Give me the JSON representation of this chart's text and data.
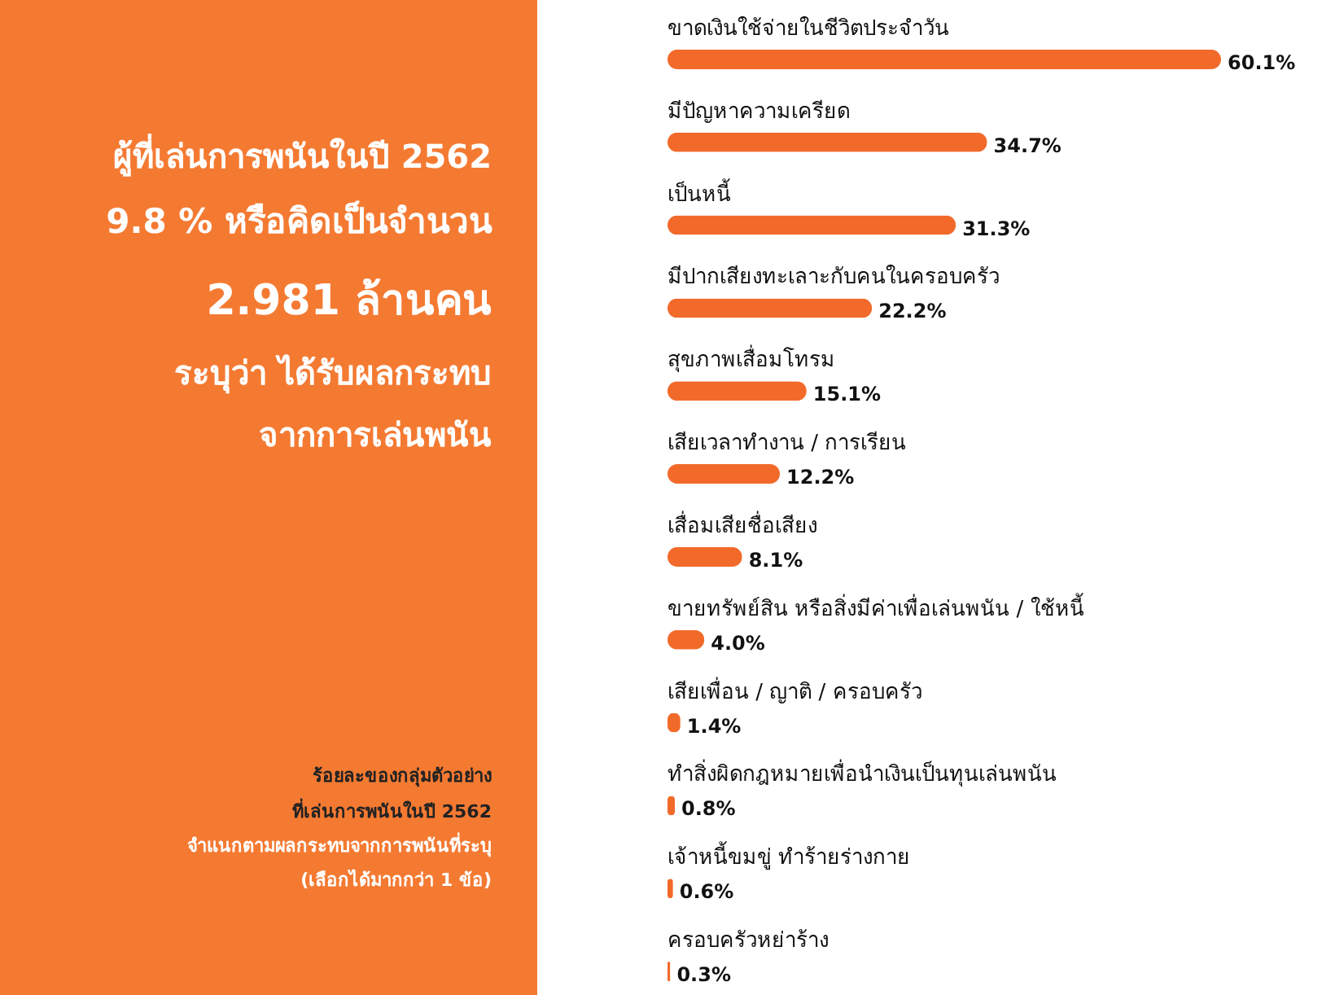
{
  "chart_data": [
    {
      "type": "other",
      "annotations": [
        "ผู้ที่เล่นการพนันในปี 2562",
        "9.8 % หรือคิดเป็นจำนวน",
        "2.981 ล้านคน",
        "ระบุว่า ได้รับผลกระทบ",
        "จากการเล่นพนัน",
        "ร้อยละของกลุ่มตัวอย่าง",
        "ที่เล่นการพนันในปี 2562",
        "จำแนกตามผลกระทบจากการพนันที่ระบุ",
        "(เลือกได้มากกว่า 1 ข้อ)"
      ]
    },
    {
      "type": "bar",
      "orientation": "horizontal",
      "color": "#f26a2a",
      "categories": [
        "ขาดเงินใช้จ่ายในชีวิตประจำวัน",
        "มีปัญหาความเครียด",
        "เป็นหนี้",
        "มีปากเสียงทะเลาะกับคนในครอบครัว",
        "สุขภาพเสื่อมโทรม",
        "เสียเวลาทำงาน / การเรียน",
        "เสื่อมเสียชื่อเสียง",
        "ขายทรัพย์สิน หรือสิ่งมีค่าเพื่อเล่นพนัน / ใช้หนี้",
        "เสียเพื่อน / ญาติ / ครอบครัว",
        "ทำสิ่งผิดกฎหมายเพื่อนำเงินเป็นทุนเล่นพนัน",
        "เจ้าหนี้ขมขู่ ทำร้ายร่างกาย",
        "ครอบครัวหย่าร้าง"
      ],
      "values": [
        60.1,
        34.7,
        31.3,
        22.2,
        15.1,
        12.2,
        8.1,
        4.0,
        1.4,
        0.8,
        0.6,
        0.3
      ],
      "value_labels": [
        "60.1%",
        "34.7%",
        "31.3%",
        "22.2%",
        "15.1%",
        "12.2%",
        "8.1%",
        "4.0%",
        "1.4%",
        "0.8%",
        "0.6%",
        "0.3%"
      ]
    }
  ]
}
